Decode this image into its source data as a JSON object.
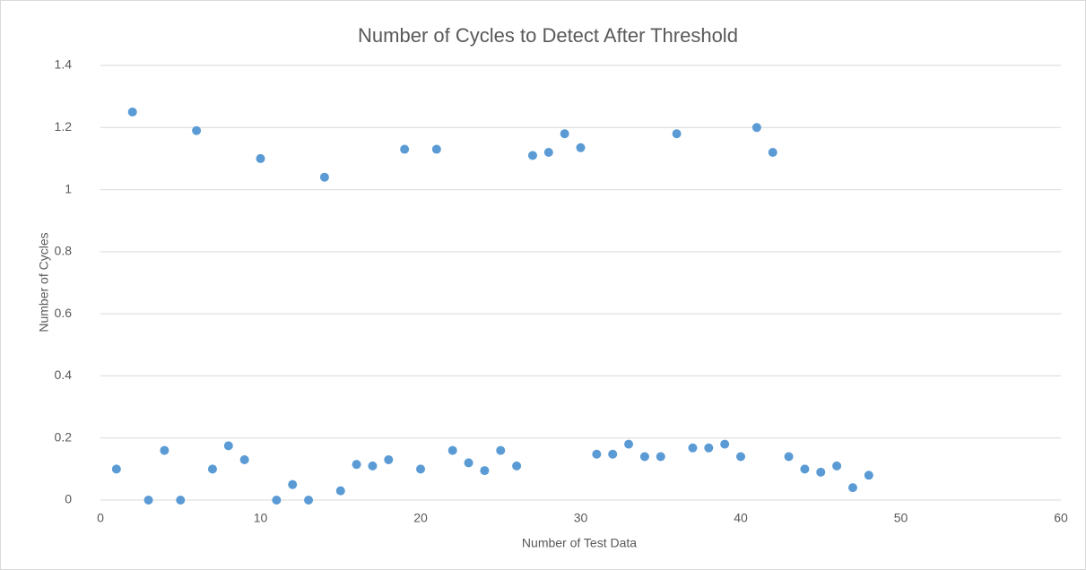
{
  "chart_data": {
    "type": "scatter",
    "title": "Number of Cycles to Detect After Threshold",
    "xlabel": "Number of Test Data",
    "ylabel": "Number of Cycles",
    "color": "#5b9bd5",
    "grid": true,
    "xlim": [
      0,
      60
    ],
    "xticks": [
      0,
      10,
      20,
      30,
      40,
      50,
      60
    ],
    "ylim": [
      0,
      1.4
    ],
    "yticks": [
      0,
      0.2,
      0.4,
      0.6,
      0.8,
      1,
      1.2,
      1.4
    ],
    "x": [
      1,
      2,
      3,
      4,
      5,
      6,
      7,
      8,
      9,
      10,
      11,
      12,
      13,
      14,
      15,
      16,
      17,
      18,
      19,
      20,
      21,
      22,
      23,
      24,
      25,
      26,
      27,
      28,
      29,
      30,
      31,
      32,
      33,
      34,
      35,
      36,
      37,
      38,
      39,
      40,
      41,
      42,
      43,
      44,
      45,
      46,
      47,
      48
    ],
    "values": [
      0.1,
      1.25,
      0,
      0.16,
      0,
      1.19,
      0.1,
      0.175,
      0.13,
      1.1,
      0,
      0.05,
      0,
      1.04,
      0.03,
      0.115,
      0.11,
      0.13,
      1.13,
      0.1,
      1.13,
      0.16,
      0.12,
      0.095,
      0.16,
      0.11,
      1.11,
      1.12,
      1.18,
      1.135,
      0.148,
      0.148,
      0.18,
      0.14,
      0.14,
      1.18,
      0.168,
      0.168,
      0.18,
      0.14,
      1.2,
      1.12,
      0.14,
      0.1,
      0.09,
      0.11,
      0.04,
      0.08
    ]
  }
}
